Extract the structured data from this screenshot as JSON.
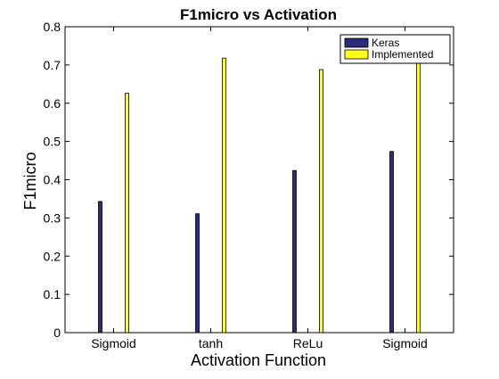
{
  "chart_data": {
    "type": "bar",
    "title": "F1micro vs Activation",
    "xlabel": "Activation Function",
    "ylabel": "F1micro",
    "categories": [
      "Sigmoid",
      "tanh",
      "ReLu",
      "Sigmoid"
    ],
    "ylim": [
      0,
      0.8
    ],
    "yticks": [
      "0",
      "0.1",
      "0.2",
      "0.3",
      "0.4",
      "0.5",
      "0.6",
      "0.7",
      "0.8"
    ],
    "legend_position": "top-right",
    "grid": false,
    "series": [
      {
        "name": "Keras",
        "values": [
          0.343,
          0.311,
          0.424,
          0.474
        ],
        "color": "#2b2b7a"
      },
      {
        "name": "Implemented",
        "values": [
          0.626,
          0.718,
          0.688,
          0.712
        ],
        "color": "#ffff1a"
      }
    ]
  }
}
